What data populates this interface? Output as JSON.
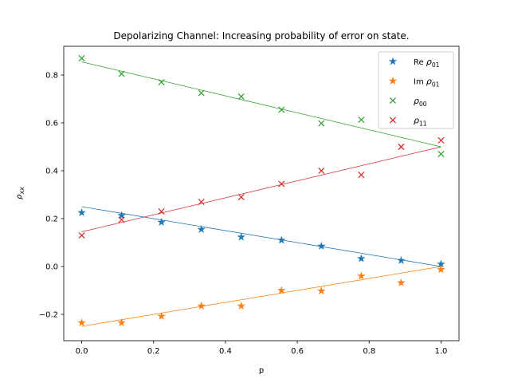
{
  "chart_data": {
    "type": "scatter",
    "title": "Depolarizing Channel: Increasing probability of error on state.",
    "xlabel": "p",
    "ylabel": "ρ_xx",
    "xlim": [
      -0.05,
      1.05
    ],
    "ylim": [
      -0.31,
      0.92
    ],
    "xticks": [
      0.0,
      0.2,
      0.4,
      0.6,
      0.8,
      1.0
    ],
    "xtick_labels": [
      "0.0",
      "0.2",
      "0.4",
      "0.6",
      "0.8",
      "1.0"
    ],
    "yticks": [
      -0.2,
      0.0,
      0.2,
      0.4,
      0.6,
      0.8
    ],
    "ytick_labels": [
      "−0.2",
      "0.0",
      "0.2",
      "0.4",
      "0.6",
      "0.8"
    ],
    "grid": false,
    "legend_position": "top-right",
    "x": [
      0.0,
      0.111,
      0.222,
      0.333,
      0.444,
      0.556,
      0.667,
      0.778,
      0.889,
      1.0
    ],
    "series": [
      {
        "name": "Re ρ01",
        "legend_main": "Re ",
        "legend_greek": "ρ",
        "legend_sub": "01",
        "color": "#1f77b4",
        "marker": "star",
        "values": [
          0.225,
          0.213,
          0.185,
          0.155,
          0.123,
          0.11,
          0.085,
          0.033,
          0.025,
          0.01
        ],
        "fit": [
          0.25,
          0.0
        ]
      },
      {
        "name": "Im ρ01",
        "legend_main": "Im ",
        "legend_greek": "ρ",
        "legend_sub": "01",
        "color": "#ff7f0e",
        "marker": "star",
        "values": [
          -0.235,
          -0.235,
          -0.208,
          -0.165,
          -0.165,
          -0.1,
          -0.102,
          -0.04,
          -0.068,
          -0.013
        ],
        "fit": [
          -0.25,
          0.0
        ]
      },
      {
        "name": "ρ00",
        "legend_main": "",
        "legend_greek": "ρ",
        "legend_sub": "00",
        "color": "#2ca02c",
        "marker": "x",
        "values": [
          0.87,
          0.805,
          0.77,
          0.725,
          0.71,
          0.655,
          0.598,
          0.613,
          0.5,
          0.47
        ],
        "fit": [
          0.855,
          0.5
        ]
      },
      {
        "name": "ρ11",
        "legend_main": "",
        "legend_greek": "ρ",
        "legend_sub": "11",
        "color": "#d62728",
        "marker": "x",
        "values": [
          0.13,
          0.195,
          0.23,
          0.27,
          0.29,
          0.345,
          0.4,
          0.383,
          0.5,
          0.527
        ],
        "fit": [
          0.145,
          0.5
        ]
      }
    ],
    "axis_label_parts": {
      "y_main": "ρ",
      "y_sub": "xx"
    }
  }
}
